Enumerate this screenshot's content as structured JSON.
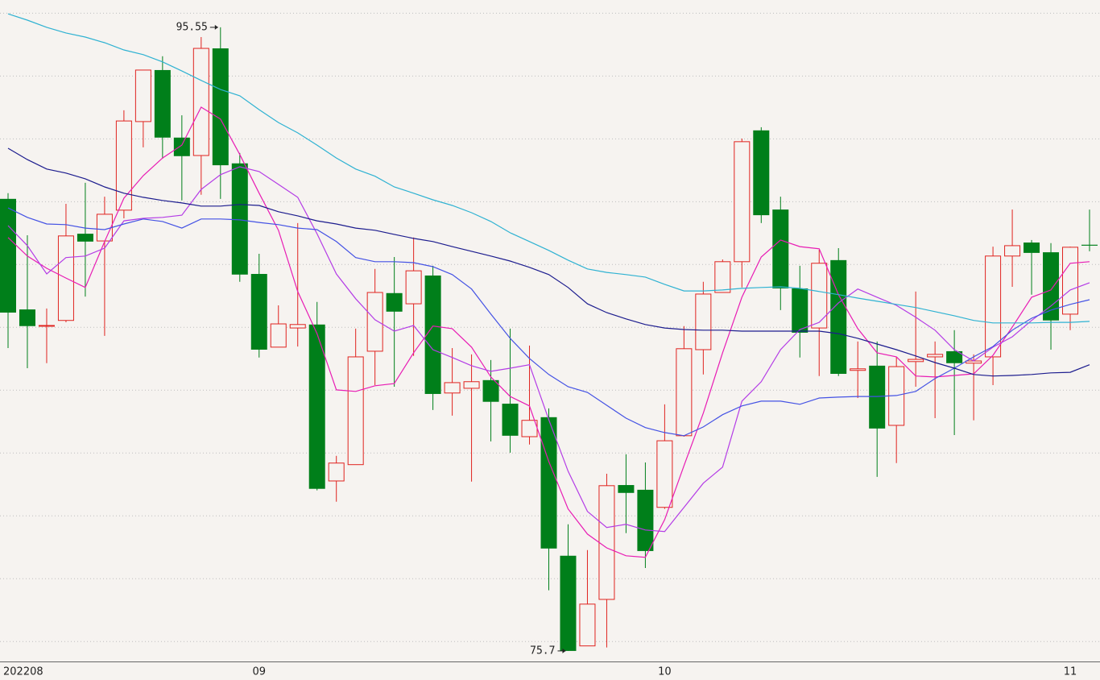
{
  "chart_data": {
    "type": "candlestick",
    "categories": [
      "202208",
      null,
      null,
      null,
      null,
      null,
      null,
      null,
      null,
      null,
      null,
      null,
      null,
      "09",
      null,
      null,
      null,
      null,
      null,
      null,
      null,
      null,
      null,
      null,
      null,
      null,
      null,
      null,
      null,
      null,
      null,
      null,
      null,
      null,
      "10",
      null,
      null,
      null,
      null,
      null,
      null,
      null,
      null,
      null,
      null,
      null,
      null,
      null,
      null,
      null,
      null,
      null,
      null,
      null,
      null,
      "11",
      null
    ],
    "open": [
      90.09,
      86.57,
      86.06,
      86.22,
      88.98,
      88.75,
      89.73,
      92.55,
      94.19,
      92.04,
      91.47,
      94.88,
      91.22,
      87.7,
      85.37,
      85.98,
      86.09,
      81.11,
      81.63,
      85.24,
      87.09,
      86.75,
      87.65,
      83.91,
      84.06,
      84.32,
      83.57,
      82.52,
      83.14,
      78.73,
      75.86,
      77.34,
      80.98,
      80.83,
      80.27,
      82.55,
      85.29,
      87.11,
      88.09,
      92.27,
      89.75,
      87.24,
      85.98,
      88.14,
      84.63,
      84.78,
      82.88,
      84.91,
      85.06,
      85.24,
      84.86,
      85.06,
      88.27,
      88.7,
      88.39,
      86.42,
      88.63
    ],
    "high": [
      90.27,
      88.93,
      86.6,
      89.93,
      90.6,
      90.16,
      92.91,
      94.19,
      94.63,
      92.75,
      95.24,
      95.55,
      91.55,
      88.34,
      86.7,
      89.32,
      86.81,
      81.91,
      85.96,
      87.86,
      88.24,
      88.86,
      87.96,
      85.34,
      85.14,
      84.96,
      85.96,
      85.42,
      83.42,
      79.73,
      78.91,
      81.34,
      81.96,
      81.7,
      83.55,
      86.04,
      87.45,
      88.16,
      92.01,
      92.37,
      90.16,
      87.96,
      88.47,
      88.52,
      85.55,
      85.55,
      85.06,
      87.14,
      85.55,
      85.91,
      85.14,
      88.57,
      89.75,
      88.78,
      88.68,
      88.57,
      89.75
    ],
    "low": [
      85.34,
      84.7,
      84.86,
      86.16,
      86.98,
      85.73,
      89.47,
      91.73,
      91.37,
      90.04,
      90.22,
      90.09,
      87.45,
      85.04,
      85.37,
      85.39,
      80.81,
      80.45,
      81.63,
      84.16,
      84.11,
      85.09,
      83.37,
      83.19,
      81.09,
      82.37,
      82.01,
      82.27,
      77.63,
      75.7,
      75.86,
      75.81,
      79.45,
      78.34,
      80.22,
      82.52,
      84.5,
      87.11,
      87.27,
      89.32,
      86.55,
      85.04,
      84.45,
      84.45,
      83.75,
      81.24,
      81.68,
      84.11,
      83.11,
      82.57,
      83.04,
      84.16,
      87.29,
      87.04,
      85.29,
      85.91,
      88.42
    ],
    "close": [
      86.47,
      86.04,
      86.06,
      88.91,
      88.73,
      89.6,
      92.57,
      94.19,
      92.04,
      91.45,
      94.88,
      91.16,
      87.68,
      85.29,
      86.11,
      86.09,
      80.86,
      81.68,
      85.06,
      87.11,
      86.5,
      87.8,
      83.88,
      84.24,
      84.27,
      83.63,
      82.55,
      83.04,
      78.96,
      75.7,
      77.19,
      80.96,
      80.73,
      78.88,
      82.39,
      85.32,
      87.06,
      88.09,
      91.91,
      89.57,
      87.24,
      85.83,
      88.04,
      84.52,
      84.68,
      82.78,
      84.75,
      84.98,
      85.14,
      84.86,
      84.93,
      88.27,
      88.6,
      88.37,
      86.22,
      88.55,
      88.6
    ],
    "up_color": "#e0231f",
    "down_color": "#007f1a",
    "lines": [
      {
        "color": "#e81cb4",
        "values": [
          88.86,
          88.27,
          87.88,
          87.57,
          87.27,
          88.73,
          90.11,
          90.83,
          91.39,
          91.8,
          93.01,
          92.63,
          91.5,
          90.27,
          89.09,
          87.14,
          85.8,
          84.01,
          83.96,
          84.14,
          84.21,
          85.19,
          86.04,
          85.96,
          85.37,
          84.42,
          83.8,
          83.5,
          81.73,
          80.22,
          79.42,
          78.98,
          78.73,
          78.68,
          79.88,
          81.6,
          83.27,
          85.19,
          86.96,
          88.24,
          88.78,
          88.57,
          88.5,
          87.04,
          85.96,
          85.19,
          85.06,
          84.45,
          84.42,
          84.47,
          84.52,
          85.11,
          86.01,
          86.96,
          87.19,
          88.04,
          88.09
        ]
      },
      {
        "color": "#b43ce6",
        "values": [
          89.24,
          88.6,
          87.7,
          88.22,
          88.27,
          88.52,
          89.39,
          89.47,
          89.5,
          89.57,
          90.39,
          90.86,
          91.11,
          90.96,
          90.55,
          90.14,
          88.98,
          87.7,
          86.91,
          86.24,
          85.88,
          86.06,
          85.29,
          85.04,
          84.78,
          84.6,
          84.7,
          84.81,
          83.06,
          81.42,
          80.14,
          79.63,
          79.73,
          79.55,
          79.5,
          80.27,
          81.04,
          81.55,
          83.65,
          84.27,
          85.29,
          85.93,
          86.16,
          86.78,
          87.22,
          86.96,
          86.7,
          86.32,
          85.91,
          85.29,
          84.93,
          85.37,
          85.7,
          86.22,
          86.68,
          87.19,
          87.42
        ]
      },
      {
        "color": "#4452e4",
        "values": [
          89.8,
          89.5,
          89.29,
          89.27,
          89.16,
          89.11,
          89.29,
          89.45,
          89.37,
          89.16,
          89.45,
          89.45,
          89.42,
          89.34,
          89.27,
          89.16,
          89.11,
          88.73,
          88.22,
          88.09,
          88.09,
          88.06,
          87.93,
          87.68,
          87.22,
          86.42,
          85.65,
          85.01,
          84.5,
          84.11,
          83.93,
          83.52,
          83.11,
          82.81,
          82.65,
          82.55,
          82.83,
          83.22,
          83.5,
          83.65,
          83.65,
          83.55,
          83.75,
          83.78,
          83.8,
          83.8,
          83.83,
          83.96,
          84.37,
          84.7,
          85.06,
          85.39,
          85.91,
          86.29,
          86.55,
          86.73,
          86.88
        ]
      },
      {
        "color": "#1c1c8e",
        "values": [
          91.7,
          91.34,
          91.04,
          90.91,
          90.73,
          90.47,
          90.27,
          90.14,
          90.04,
          89.96,
          89.86,
          89.86,
          89.91,
          89.88,
          89.68,
          89.55,
          89.39,
          89.29,
          89.16,
          89.09,
          88.96,
          88.83,
          88.73,
          88.57,
          88.42,
          88.27,
          88.11,
          87.91,
          87.68,
          87.27,
          86.75,
          86.47,
          86.27,
          86.09,
          85.98,
          85.93,
          85.91,
          85.91,
          85.88,
          85.88,
          85.88,
          85.88,
          85.88,
          85.8,
          85.65,
          85.47,
          85.29,
          85.09,
          84.88,
          84.7,
          84.5,
          84.45,
          84.47,
          84.5,
          84.55,
          84.57,
          84.81
        ]
      },
      {
        "color": "#2fb2d2",
        "values": [
          95.98,
          95.78,
          95.55,
          95.37,
          95.24,
          95.06,
          94.83,
          94.68,
          94.45,
          94.16,
          93.86,
          93.57,
          93.37,
          92.93,
          92.52,
          92.19,
          91.8,
          91.39,
          91.04,
          90.81,
          90.47,
          90.27,
          90.06,
          89.88,
          89.65,
          89.37,
          89.01,
          88.73,
          88.45,
          88.14,
          87.86,
          87.75,
          87.68,
          87.6,
          87.37,
          87.16,
          87.16,
          87.19,
          87.24,
          87.27,
          87.29,
          87.24,
          87.14,
          87.04,
          86.93,
          86.83,
          86.73,
          86.63,
          86.5,
          86.37,
          86.22,
          86.14,
          86.14,
          86.14,
          86.16,
          86.16,
          86.19
        ]
      }
    ],
    "ylim": [
      75.39,
      96.42
    ],
    "yticks": [
      76,
      78,
      80,
      82,
      84,
      86,
      88,
      90,
      92,
      94,
      96
    ],
    "grid": true
  }
}
